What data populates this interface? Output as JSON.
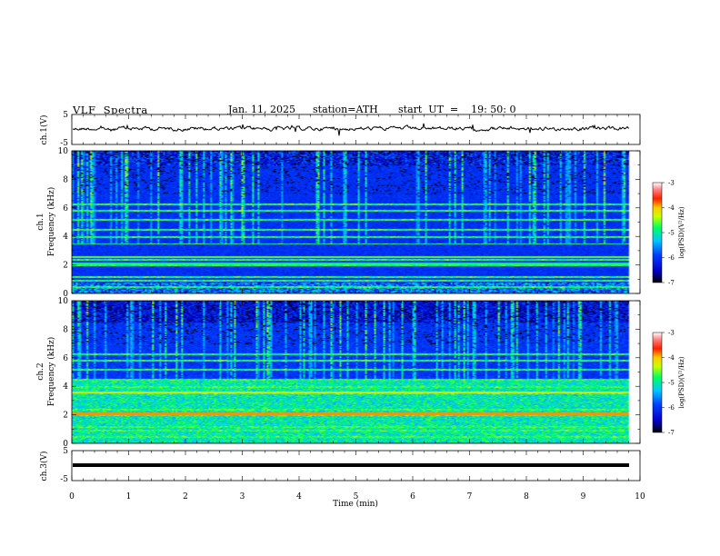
{
  "header": {
    "title": "VLF  Spectra",
    "date": "Jan. 11, 2025",
    "station": "station=ATH",
    "start": "start  UT  =    19: 50: 0"
  },
  "chart_data": [
    {
      "type": "line",
      "id": "ch1-waveform",
      "ylabel": "ch.1(V)",
      "yticks": [
        "5",
        "-5"
      ],
      "ylim": [
        -5,
        5
      ],
      "xlim": [
        0,
        10
      ]
    },
    {
      "type": "heatmap",
      "id": "ch1-spectrogram",
      "ylabel": "ch.1\nFrequency (kHz)",
      "ylabel_line1": "ch.1",
      "ylabel_line2": "Frequency  (kHz)",
      "yticks": [
        "0",
        "2",
        "4",
        "6",
        "8",
        "10"
      ],
      "ylim": [
        0,
        10
      ],
      "xlim": [
        0,
        10
      ],
      "colorbar": {
        "label": "log(PSD)(V²/Hz)",
        "ticks": [
          "-3",
          "-4",
          "-5",
          "-6",
          "-7"
        ],
        "range": [
          -7,
          -3
        ]
      }
    },
    {
      "type": "heatmap",
      "id": "ch2-spectrogram",
      "ylabel_line1": "ch.2",
      "ylabel_line2": "Frequency  (kHz)",
      "yticks": [
        "0",
        "2",
        "4",
        "6",
        "8",
        "10"
      ],
      "ylim": [
        0,
        10
      ],
      "xlim": [
        0,
        10
      ],
      "colorbar": {
        "label": "log(PSD)(V²/Hz)",
        "ticks": [
          "-3",
          "-4",
          "-5",
          "-6",
          "-7"
        ],
        "range": [
          -7,
          -3
        ]
      }
    },
    {
      "type": "line",
      "id": "ch3-waveform",
      "ylabel": "ch.3(V)",
      "yticks": [
        "5",
        "-5"
      ],
      "ylim": [
        -5,
        5
      ],
      "xlim": [
        0,
        10
      ]
    }
  ],
  "xaxis": {
    "label": "Time  (min)",
    "ticks": [
      "0",
      "1",
      "2",
      "3",
      "4",
      "5",
      "6",
      "7",
      "8",
      "9",
      "10"
    ]
  },
  "colorbar_label": "log(PSD)(V²/Hz)",
  "colors": {
    "low": "#000000",
    "mid_low": "#0000ff",
    "mid": "#00ffff",
    "mid_high": "#ffff00",
    "high": "#ff0000"
  }
}
